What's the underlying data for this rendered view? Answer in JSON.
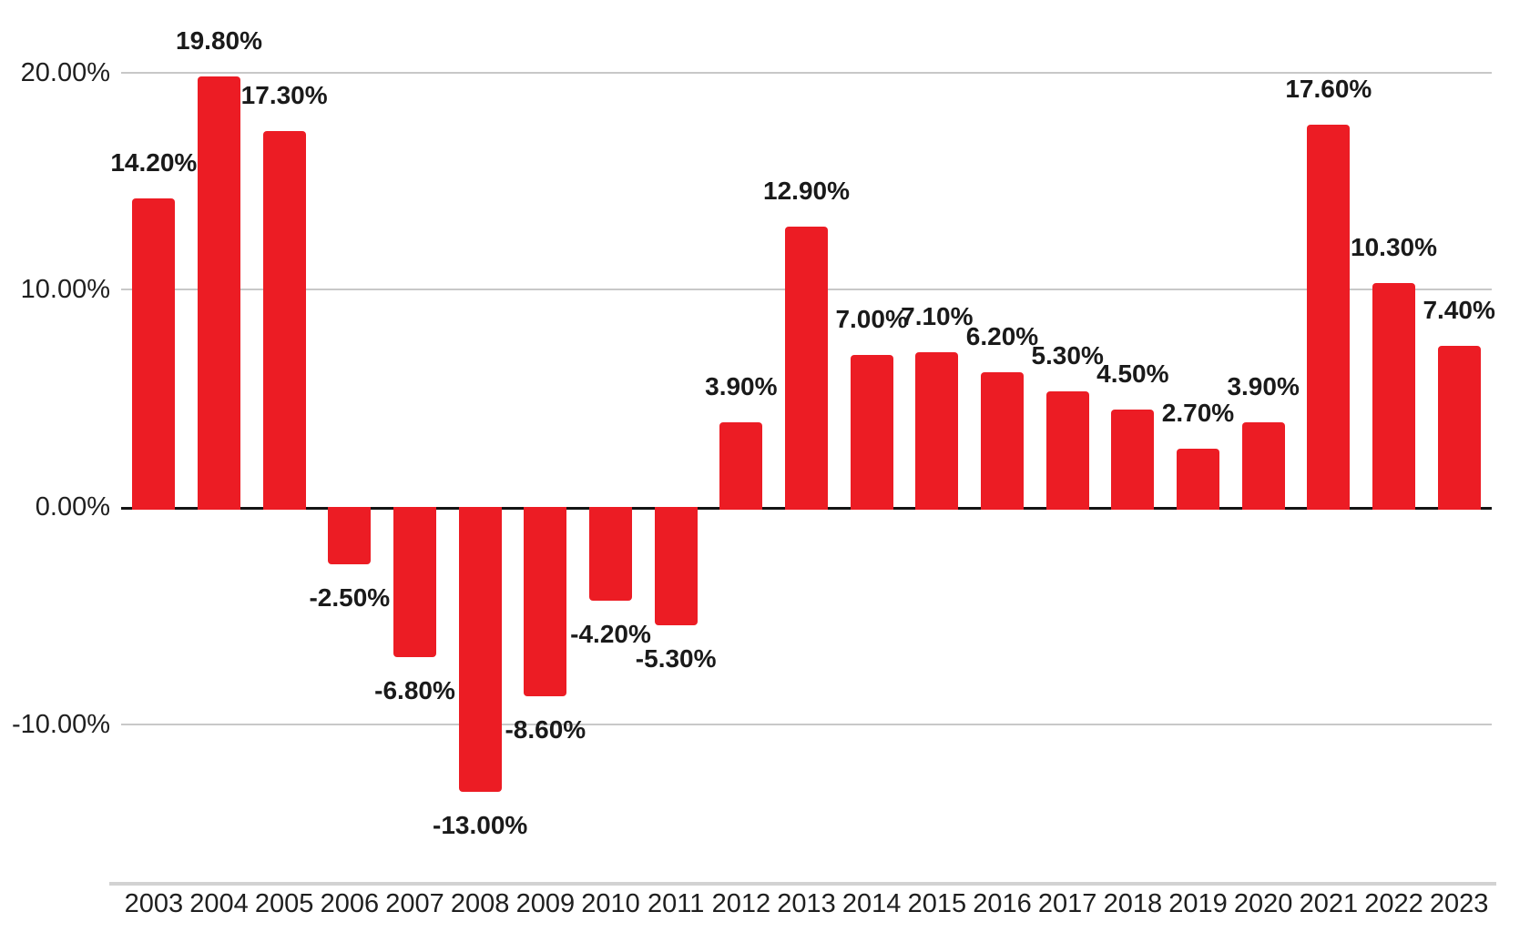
{
  "chart_data": {
    "type": "bar",
    "title": "",
    "xlabel": "",
    "ylabel": "",
    "legend": "none",
    "grid": "horizontal-gridlines",
    "categories": [
      "2003",
      "2004",
      "2005",
      "2006",
      "2007",
      "2008",
      "2009",
      "2010",
      "2011",
      "2012",
      "2013",
      "2014",
      "2015",
      "2016",
      "2017",
      "2018",
      "2019",
      "2020",
      "2021",
      "2022",
      "2023"
    ],
    "values": [
      14.2,
      19.8,
      17.3,
      -2.5,
      -6.8,
      -13.0,
      -8.6,
      -4.2,
      -5.3,
      3.9,
      12.9,
      7.0,
      7.1,
      6.2,
      5.3,
      4.5,
      2.7,
      3.9,
      17.6,
      10.3,
      7.4
    ],
    "data_labels": [
      "14.20%",
      "19.80%",
      "17.30%",
      "-2.50%",
      "-6.80%",
      "-13.00%",
      "-8.60%",
      "-4.20%",
      "-5.30%",
      "3.90%",
      "12.90%",
      "7.00%",
      "7.10%",
      "6.20%",
      "5.30%",
      "4.50%",
      "2.70%",
      "3.90%",
      "17.60%",
      "10.30%",
      "7.40%"
    ],
    "y_ticks": [
      {
        "label": "20.00%",
        "value": 20
      },
      {
        "label": "10.00%",
        "value": 10
      },
      {
        "label": "0.00%",
        "value": 0
      },
      {
        "label": "-10.00%",
        "value": -10
      }
    ],
    "ylim": [
      -15.5,
      22
    ],
    "colors": {
      "bar": "#EC1C24",
      "gridline": "#C8C8C8",
      "zero_axis": "#141414",
      "separator": "#D2D2D2",
      "text": "#1A1A1A"
    }
  }
}
